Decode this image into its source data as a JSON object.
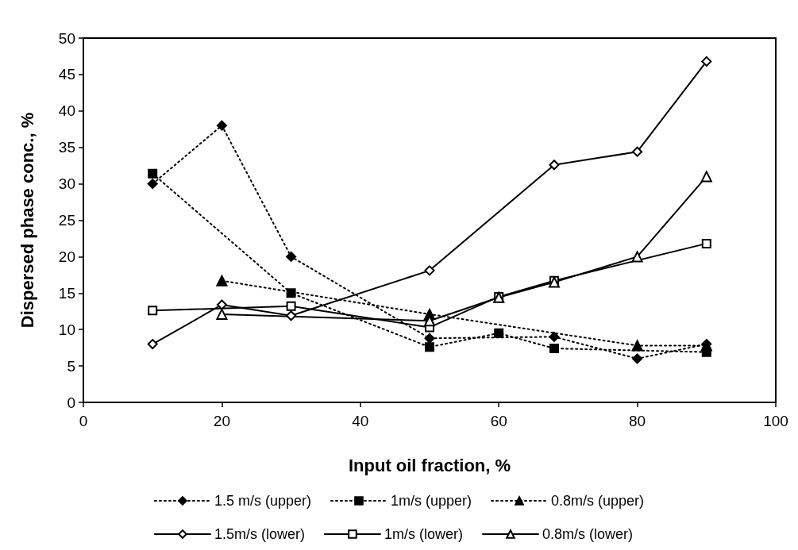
{
  "chart_data": {
    "type": "line",
    "xlabel": "Input oil fraction, %",
    "ylabel": "Dispersed phase conc., %",
    "xlim": [
      0,
      100
    ],
    "xticks": [
      0,
      20,
      40,
      60,
      80,
      100
    ],
    "ylim": [
      0,
      50
    ],
    "yticks": [
      0,
      5,
      10,
      15,
      20,
      25,
      30,
      35,
      40,
      45,
      50
    ],
    "grid": false,
    "legend": "bottom",
    "series": [
      {
        "name": "1.5 m/s (upper)",
        "color": "#000000",
        "marker": "diamond",
        "line_style": "dotted",
        "x": [
          10,
          20,
          30,
          50,
          68,
          80,
          90
        ],
        "values": [
          30,
          38,
          20,
          8.8,
          9,
          6,
          8
        ]
      },
      {
        "name": "1m/s (upper)",
        "color": "#000000",
        "marker": "square",
        "line_style": "dotted",
        "x": [
          10,
          30,
          50,
          60,
          68,
          90
        ],
        "values": [
          31.4,
          15,
          7.6,
          9.5,
          7.4,
          6.9
        ]
      },
      {
        "name": "0.8m/s (upper)",
        "color": "#000000",
        "marker": "triangle",
        "line_style": "dotted",
        "x": [
          20,
          50,
          80,
          90
        ],
        "values": [
          16.7,
          12.1,
          7.8,
          7.8
        ]
      },
      {
        "name": "1.5m/s (lower)",
        "color": "#000000",
        "marker": "diamond",
        "line_style": "solid",
        "x": [
          10,
          20,
          30,
          50,
          68,
          80,
          90
        ],
        "values": [
          8,
          13.4,
          11.9,
          18.1,
          32.6,
          34.4,
          46.8
        ]
      },
      {
        "name": "1m/s (lower)",
        "color": "#000000",
        "marker": "square",
        "line_style": "solid",
        "x": [
          10,
          30,
          50,
          60,
          68,
          90
        ],
        "values": [
          12.6,
          13.2,
          10.3,
          14.5,
          16.7,
          21.8
        ]
      },
      {
        "name": "0.8m/s (lower)",
        "color": "#000000",
        "marker": "triangle",
        "line_style": "solid",
        "x": [
          20,
          50,
          60,
          68,
          80,
          90
        ],
        "values": [
          12.1,
          11.2,
          14.4,
          16.5,
          20,
          31
        ]
      }
    ]
  }
}
